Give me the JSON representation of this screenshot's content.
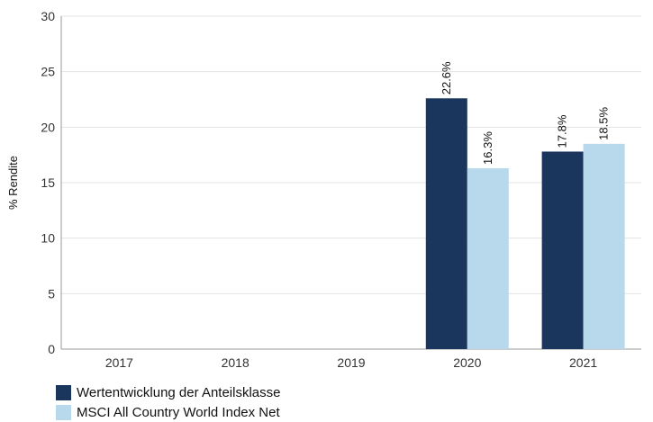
{
  "chart_data": {
    "type": "bar",
    "categories": [
      "2017",
      "2018",
      "2019",
      "2020",
      "2021"
    ],
    "series": [
      {
        "name": "Wertentwicklung der Anteilsklasse",
        "color": "#1b365d",
        "values": [
          null,
          null,
          null,
          22.6,
          17.8
        ],
        "labels": [
          "",
          "",
          "",
          "22.6%",
          "17.8%"
        ]
      },
      {
        "name": "MSCI All Country World Index Net",
        "color": "#b8d8ec",
        "values": [
          null,
          null,
          null,
          16.3,
          18.5
        ],
        "labels": [
          "",
          "",
          "",
          "16.3%",
          "18.5%"
        ]
      }
    ],
    "ylabel": "% Rendite",
    "ylim": [
      0,
      30
    ],
    "yticks": [
      "0",
      "5",
      "10",
      "15",
      "20",
      "25",
      "30"
    ],
    "grid": true,
    "legend_position": "bottom-left"
  }
}
